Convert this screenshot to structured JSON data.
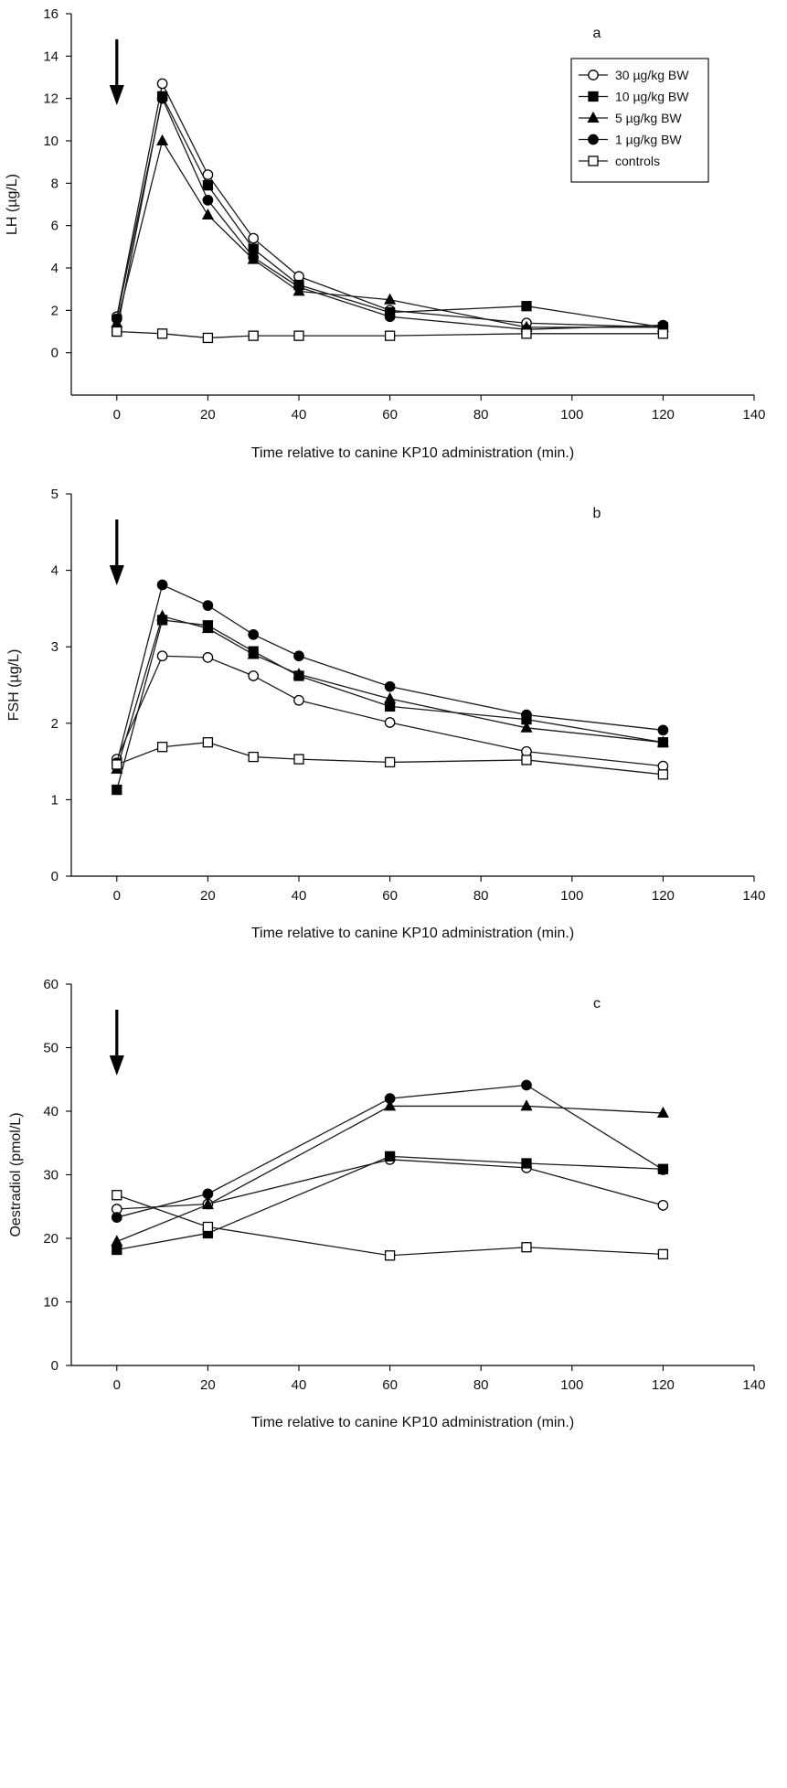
{
  "figure": {
    "legend_position": "top-right",
    "legend_panel_index": 0,
    "series_styles": [
      {
        "marker": "circle",
        "fill": "open"
      },
      {
        "marker": "square",
        "fill": "filled"
      },
      {
        "marker": "triangle",
        "fill": "filled"
      },
      {
        "marker": "circle",
        "fill": "filled"
      },
      {
        "marker": "square",
        "fill": "open"
      }
    ],
    "colors": {
      "line": "#1a1a1a",
      "marker": "#000000",
      "background": "#ffffff"
    },
    "arrow_at_x": 0
  },
  "chart_data": [
    {
      "type": "line",
      "panel_label": "a",
      "xlabel": "Time relative to canine KP10 administration (min.)",
      "ylabel": "LH  (µg/L)",
      "xlim": [
        -10,
        140
      ],
      "ylim": [
        -2,
        16
      ],
      "xticks": [
        "0",
        "20",
        "40",
        "60",
        "80",
        "100",
        "120",
        "140"
      ],
      "yticks": [
        "0",
        "2",
        "4",
        "6",
        "8",
        "10",
        "12",
        "14",
        "16"
      ],
      "x": [
        0,
        10,
        20,
        30,
        40,
        60,
        90,
        120
      ],
      "series": [
        {
          "name": "30 µg/kg BW",
          "values": [
            1.7,
            12.7,
            8.4,
            5.4,
            3.6,
            2.0,
            1.4,
            1.2
          ]
        },
        {
          "name": "10 µg/kg BW",
          "values": [
            1.0,
            12.1,
            7.9,
            4.9,
            3.2,
            1.9,
            2.2,
            1.2
          ]
        },
        {
          "name": "5 µg/kg BW",
          "values": [
            1.4,
            10.0,
            6.5,
            4.4,
            2.9,
            2.5,
            1.2,
            1.2
          ]
        },
        {
          "name": "1 µg/kg BW",
          "values": [
            1.6,
            12.0,
            7.2,
            4.5,
            3.1,
            1.7,
            1.1,
            1.3
          ]
        },
        {
          "name": "controls",
          "values": [
            1.0,
            0.9,
            0.7,
            0.8,
            0.8,
            0.8,
            0.9,
            0.9
          ]
        }
      ]
    },
    {
      "type": "line",
      "panel_label": "b",
      "xlabel": "Time relative to canine KP10 administration (min.)",
      "ylabel": "FSH  (µg/L)",
      "xlim": [
        -10,
        140
      ],
      "ylim": [
        0,
        5
      ],
      "xticks": [
        "0",
        "20",
        "40",
        "60",
        "80",
        "100",
        "120",
        "140"
      ],
      "yticks": [
        "0",
        "1",
        "2",
        "3",
        "4",
        "5"
      ],
      "x": [
        0,
        10,
        20,
        30,
        40,
        60,
        90,
        120
      ],
      "series": [
        {
          "name": "30 µg/kg BW",
          "values": [
            1.53,
            2.88,
            2.86,
            2.62,
            2.3,
            2.01,
            1.63,
            1.44
          ]
        },
        {
          "name": "10 µg/kg BW",
          "values": [
            1.13,
            3.35,
            3.28,
            2.94,
            2.62,
            2.22,
            2.05,
            1.75
          ]
        },
        {
          "name": "5 µg/kg BW",
          "values": [
            1.4,
            3.4,
            3.24,
            2.9,
            2.64,
            2.32,
            1.94,
            1.75
          ]
        },
        {
          "name": "1 µg/kg BW",
          "values": [
            1.48,
            3.81,
            3.54,
            3.16,
            2.88,
            2.48,
            2.11,
            1.91
          ]
        },
        {
          "name": "controls",
          "values": [
            1.46,
            1.69,
            1.75,
            1.56,
            1.53,
            1.49,
            1.52,
            1.33
          ]
        }
      ]
    },
    {
      "type": "line",
      "panel_label": "c",
      "xlabel": "Time relative to canine KP10 administration (min.)",
      "ylabel": "Oestradiol  (pmol/L)",
      "xlim": [
        -10,
        140
      ],
      "ylim": [
        0,
        60
      ],
      "xticks": [
        "0",
        "20",
        "40",
        "60",
        "80",
        "100",
        "120",
        "140"
      ],
      "yticks": [
        "0",
        "10",
        "20",
        "30",
        "40",
        "50",
        "60"
      ],
      "x": [
        0,
        20,
        60,
        90,
        120
      ],
      "series": [
        {
          "name": "30 µg/kg BW",
          "values": [
            24.6,
            25.4,
            32.4,
            31.1,
            25.2
          ]
        },
        {
          "name": "10 µg/kg BW",
          "values": [
            18.2,
            20.8,
            32.9,
            31.8,
            30.9
          ]
        },
        {
          "name": "5 µg/kg BW",
          "values": [
            19.5,
            25.3,
            40.8,
            40.8,
            39.7
          ]
        },
        {
          "name": "1 µg/kg BW",
          "values": [
            23.3,
            27.0,
            42.0,
            44.1,
            30.8
          ]
        },
        {
          "name": "controls",
          "values": [
            26.8,
            21.8,
            17.3,
            18.6,
            17.5
          ]
        }
      ]
    }
  ]
}
